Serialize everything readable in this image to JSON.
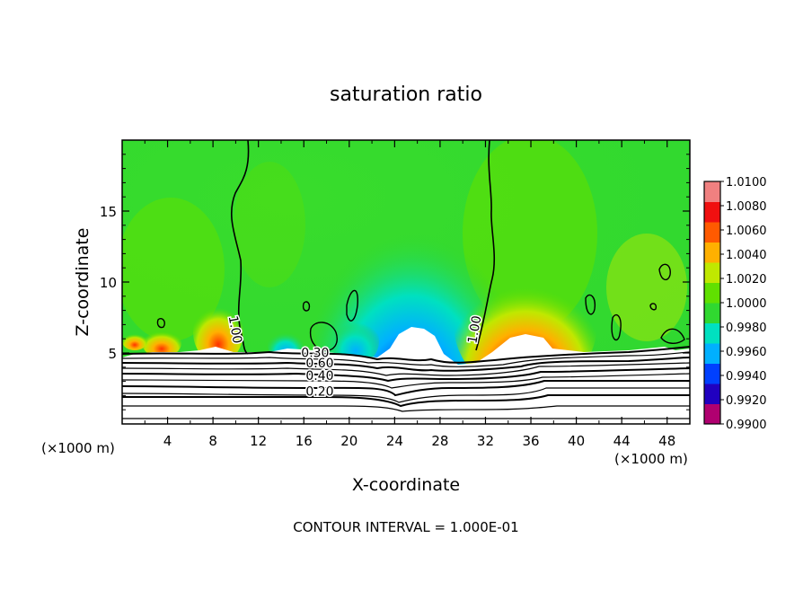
{
  "chart_data": {
    "type": "heatmap",
    "title": "saturation ratio",
    "xlabel": "X-coordinate",
    "ylabel": "Z-coordinate",
    "x_unit_left": "(×1000 m)",
    "x_unit_right": "(×1000 m)",
    "xlim": [
      0,
      50
    ],
    "ylim": [
      0,
      20
    ],
    "x_ticks": [
      4,
      8,
      12,
      16,
      20,
      24,
      28,
      32,
      36,
      40,
      44,
      48
    ],
    "y_ticks": [
      5,
      10,
      15
    ],
    "colorbar": {
      "min": 0.99,
      "max": 1.01,
      "levels": [
        "1.0100",
        "1.0080",
        "1.0060",
        "1.0040",
        "1.0020",
        "1.0000",
        "0.9980",
        "0.9960",
        "0.9940",
        "0.9920",
        "0.9900"
      ],
      "colors": [
        "#b00070",
        "#2000c0",
        "#0040ff",
        "#00b0ff",
        "#00e0c0",
        "#30d830",
        "#60e000",
        "#c0e800",
        "#ffb000",
        "#ff5a00",
        "#f01010",
        "#f08080"
      ]
    },
    "contour_labels": [
      {
        "text": "1.00",
        "x": 9.6,
        "z": 6.6,
        "angle": 80
      },
      {
        "text": "1.00",
        "x": 31.4,
        "z": 6.6,
        "angle": -80
      },
      {
        "text": "0.30",
        "x": 17.0,
        "z": 4.7,
        "angle": 0
      },
      {
        "text": "0.60",
        "x": 17.4,
        "z": 4.0,
        "angle": 0
      },
      {
        "text": "0.40",
        "x": 17.4,
        "z": 3.1,
        "angle": 0
      },
      {
        "text": "0.20",
        "x": 17.4,
        "z": 2.0,
        "angle": 0
      }
    ],
    "footer": "CONTOUR INTERVAL = 1.000E-01"
  }
}
